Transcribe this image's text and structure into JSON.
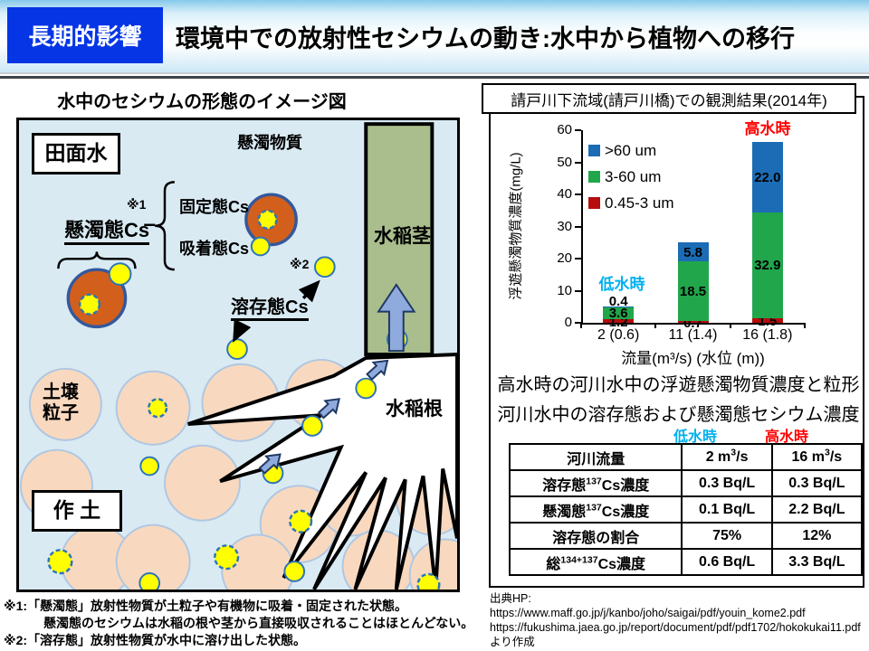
{
  "header": {
    "badge": "長期的影響",
    "title": "環境中での放射性セシウムの動き:水中から植物への移行"
  },
  "diagram": {
    "title": "水中のセシウムの形態のイメージ図",
    "paddy_water": "田面水",
    "suspended_matter": "懸濁物質",
    "suspended_cs": "懸濁態Cs",
    "fixed_cs": "固定態Cs",
    "adsorbed_cs": "吸着態Cs",
    "dissolved_cs": "溶存態Cs",
    "note1_mark": "※1",
    "note2_mark": "※2",
    "rice_stem": "水稲茎",
    "rice_root": "水稲根",
    "soil_particle": "土壌粒子",
    "plow_soil": "作 土"
  },
  "chart_data": {
    "type": "bar",
    "stacked": true,
    "title": "請戸川下流域(請戸川橋)での観測結果(2014年)",
    "ylabel": "浮遊懸濁物質濃度(mg/L)",
    "xlabel": "流量(m³/s) (水位 (m))",
    "ylim": [
      0,
      60
    ],
    "yticks": [
      0,
      10,
      20,
      30,
      40,
      50,
      60
    ],
    "categories": [
      "2 (0.6)",
      "11 (1.4)",
      "16 (1.8)"
    ],
    "series": [
      {
        "name": ">60 um",
        "color": "#1B6CB5",
        "values": [
          0.4,
          5.8,
          22.0
        ],
        "labels": [
          "0.4",
          "5.8",
          "22.0"
        ]
      },
      {
        "name": "3-60 um",
        "color": "#21A64B",
        "values": [
          3.6,
          18.5,
          32.9
        ],
        "labels": [
          "3.6",
          "18.5",
          "32.9"
        ]
      },
      {
        "name": "0.45-3 um",
        "color": "#B60E0E",
        "values": [
          1.2,
          0.7,
          1.5
        ],
        "labels": [
          "1.2",
          "0.7",
          "1.5"
        ]
      }
    ],
    "annotations": {
      "low": "低水時",
      "high": "高水時"
    },
    "legend_position": "upper-left-inside",
    "grid": false
  },
  "captions": [
    "高水時の河川水中の浮遊懸濁物質濃度と粒形",
    "河川水中の溶存態および懸濁態セシウム濃度"
  ],
  "table": {
    "col_headers": {
      "low": "低水時",
      "high": "高水時"
    },
    "rows": [
      {
        "label": "河川流量",
        "low": "2 m^{3}/s",
        "high": "16 m^{3}/s"
      },
      {
        "label": "溶存態^{137}Cs濃度",
        "low": "0.3 Bq/L",
        "high": "0.3 Bq/L"
      },
      {
        "label": "懸濁態^{137}Cs濃度",
        "low": "0.1 Bq/L",
        "high": "2.2 Bq/L"
      },
      {
        "label": "溶存態の割合",
        "low": "75%",
        "high": "12%"
      },
      {
        "label": "総^{134+137}Cs濃度",
        "low": "0.6 Bq/L",
        "high": "3.3 Bq/L"
      }
    ]
  },
  "notes": [
    "※1:「懸濁態」放射性物質が土粒子や有機物に吸着・固定された状態。",
    "懸濁態のセシウムは水稲の根や茎から直接吸収されることはほとんどない。",
    "※2:「溶存態」放射性物質が水中に溶け出した状態。"
  ],
  "source": {
    "intro": "出典HP:",
    "urls": [
      "https://www.maff.go.jp/j/kanbo/joho/saigai/pdf/youin_kome2.pdf",
      "https://fukushima.jaea.go.jp/report/document/pdf/pdf1702/hokokukai11.pdf"
    ],
    "outro": "より作成"
  },
  "colors": {
    "badge_blue": "#0535E5",
    "low_water": "#00B0F0",
    "high_water": "#FF0000",
    "chart_blue": "#1B6CB5",
    "chart_green": "#21A64B",
    "chart_red": "#B60E0E"
  }
}
